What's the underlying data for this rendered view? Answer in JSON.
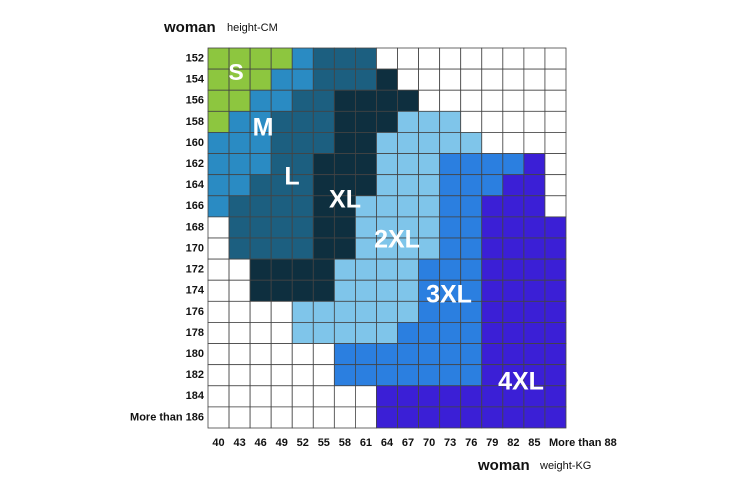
{
  "header": {
    "title": "woman",
    "unit": "height-CM"
  },
  "footer": {
    "title": "woman",
    "unit": "weight-KG"
  },
  "columns": [
    "40",
    "43",
    "46",
    "49",
    "52",
    "55",
    "58",
    "61",
    "64",
    "67",
    "70",
    "73",
    "76",
    "79",
    "82",
    "85",
    "More than 88"
  ],
  "sizes": [
    "S",
    "M",
    "L",
    "XL",
    "2XL",
    "3XL",
    "4XL"
  ],
  "rows": [
    {
      "label": "152",
      "cells": [
        "#8dc63f",
        "#8dc63f",
        "#8dc63f",
        "#8dc63f",
        "#2a8bc3",
        "#1c5f80",
        "#1c5f80",
        "#1c5f80",
        null,
        null,
        null,
        null,
        null,
        null,
        null,
        null,
        null
      ]
    },
    {
      "label": "154",
      "cells": [
        "#8dc63f",
        "#8dc63f",
        "#8dc63f",
        "#2a8bc3",
        "#2a8bc3",
        "#1c5f80",
        "#1c5f80",
        "#1c5f80",
        "#0e2f3f",
        null,
        null,
        null,
        null,
        null,
        null,
        null,
        null
      ]
    },
    {
      "label": "156",
      "cells": [
        "#8dc63f",
        "#8dc63f",
        "#2a8bc3",
        "#2a8bc3",
        "#1c5f80",
        "#1c5f80",
        "#0e2f3f",
        "#0e2f3f",
        "#0e2f3f",
        "#0e2f3f",
        null,
        null,
        null,
        null,
        null,
        null,
        null
      ]
    },
    {
      "label": "158",
      "cells": [
        "#8dc63f",
        "#2a8bc3",
        "#2a8bc3",
        "#1c5f80",
        "#1c5f80",
        "#1c5f80",
        "#0e2f3f",
        "#0e2f3f",
        "#0e2f3f",
        "#7fc5ea",
        "#7fc5ea",
        "#7fc5ea",
        null,
        null,
        null,
        null,
        null
      ]
    },
    {
      "label": "160",
      "cells": [
        "#2a8bc3",
        "#2a8bc3",
        "#2a8bc3",
        "#1c5f80",
        "#1c5f80",
        "#1c5f80",
        "#0e2f3f",
        "#0e2f3f",
        "#7fc5ea",
        "#7fc5ea",
        "#7fc5ea",
        "#7fc5ea",
        "#7fc5ea",
        null,
        null,
        null,
        null
      ]
    },
    {
      "label": "162",
      "cells": [
        "#2a8bc3",
        "#2a8bc3",
        "#2a8bc3",
        "#1c5f80",
        "#1c5f80",
        "#0e2f3f",
        "#0e2f3f",
        "#0e2f3f",
        "#7fc5ea",
        "#7fc5ea",
        "#7fc5ea",
        "#2b7fe0",
        "#2b7fe0",
        "#2b7fe0",
        "#2b7fe0",
        "#3b1fd6",
        null
      ]
    },
    {
      "label": "164",
      "cells": [
        "#2a8bc3",
        "#2a8bc3",
        "#1c5f80",
        "#1c5f80",
        "#1c5f80",
        "#0e2f3f",
        "#0e2f3f",
        "#0e2f3f",
        "#7fc5ea",
        "#7fc5ea",
        "#7fc5ea",
        "#2b7fe0",
        "#2b7fe0",
        "#2b7fe0",
        "#3b1fd6",
        "#3b1fd6",
        null
      ]
    },
    {
      "label": "166",
      "cells": [
        "#2a8bc3",
        "#1c5f80",
        "#1c5f80",
        "#1c5f80",
        "#1c5f80",
        "#0e2f3f",
        "#0e2f3f",
        "#7fc5ea",
        "#7fc5ea",
        "#7fc5ea",
        "#7fc5ea",
        "#2b7fe0",
        "#2b7fe0",
        "#3b1fd6",
        "#3b1fd6",
        "#3b1fd6",
        null
      ]
    },
    {
      "label": "168",
      "cells": [
        null,
        "#1c5f80",
        "#1c5f80",
        "#1c5f80",
        "#1c5f80",
        "#0e2f3f",
        "#0e2f3f",
        "#7fc5ea",
        "#7fc5ea",
        "#7fc5ea",
        "#7fc5ea",
        "#2b7fe0",
        "#2b7fe0",
        "#3b1fd6",
        "#3b1fd6",
        "#3b1fd6",
        "#3b1fd6"
      ]
    },
    {
      "label": "170",
      "cells": [
        null,
        "#1c5f80",
        "#1c5f80",
        "#1c5f80",
        "#1c5f80",
        "#0e2f3f",
        "#0e2f3f",
        "#7fc5ea",
        "#7fc5ea",
        "#7fc5ea",
        "#7fc5ea",
        "#2b7fe0",
        "#2b7fe0",
        "#3b1fd6",
        "#3b1fd6",
        "#3b1fd6",
        "#3b1fd6"
      ]
    },
    {
      "label": "172",
      "cells": [
        null,
        null,
        "#0e2f3f",
        "#0e2f3f",
        "#0e2f3f",
        "#0e2f3f",
        "#7fc5ea",
        "#7fc5ea",
        "#7fc5ea",
        "#7fc5ea",
        "#2b7fe0",
        "#2b7fe0",
        "#2b7fe0",
        "#3b1fd6",
        "#3b1fd6",
        "#3b1fd6",
        "#3b1fd6"
      ]
    },
    {
      "label": "174",
      "cells": [
        null,
        null,
        "#0e2f3f",
        "#0e2f3f",
        "#0e2f3f",
        "#0e2f3f",
        "#7fc5ea",
        "#7fc5ea",
        "#7fc5ea",
        "#7fc5ea",
        "#2b7fe0",
        "#2b7fe0",
        "#2b7fe0",
        "#3b1fd6",
        "#3b1fd6",
        "#3b1fd6",
        "#3b1fd6"
      ]
    },
    {
      "label": "176",
      "cells": [
        null,
        null,
        null,
        null,
        "#7fc5ea",
        "#7fc5ea",
        "#7fc5ea",
        "#7fc5ea",
        "#7fc5ea",
        "#7fc5ea",
        "#2b7fe0",
        "#2b7fe0",
        "#2b7fe0",
        "#3b1fd6",
        "#3b1fd6",
        "#3b1fd6",
        "#3b1fd6"
      ]
    },
    {
      "label": "178",
      "cells": [
        null,
        null,
        null,
        null,
        "#7fc5ea",
        "#7fc5ea",
        "#7fc5ea",
        "#7fc5ea",
        "#7fc5ea",
        "#2b7fe0",
        "#2b7fe0",
        "#2b7fe0",
        "#2b7fe0",
        "#3b1fd6",
        "#3b1fd6",
        "#3b1fd6",
        "#3b1fd6"
      ]
    },
    {
      "label": "180",
      "cells": [
        null,
        null,
        null,
        null,
        null,
        null,
        "#2b7fe0",
        "#2b7fe0",
        "#2b7fe0",
        "#2b7fe0",
        "#2b7fe0",
        "#2b7fe0",
        "#2b7fe0",
        "#3b1fd6",
        "#3b1fd6",
        "#3b1fd6",
        "#3b1fd6"
      ]
    },
    {
      "label": "182",
      "cells": [
        null,
        null,
        null,
        null,
        null,
        null,
        "#2b7fe0",
        "#2b7fe0",
        "#2b7fe0",
        "#2b7fe0",
        "#2b7fe0",
        "#2b7fe0",
        "#2b7fe0",
        "#3b1fd6",
        "#3b1fd6",
        "#3b1fd6",
        "#3b1fd6"
      ]
    },
    {
      "label": "184",
      "cells": [
        null,
        null,
        null,
        null,
        null,
        null,
        null,
        null,
        "#3b1fd6",
        "#3b1fd6",
        "#3b1fd6",
        "#3b1fd6",
        "#3b1fd6",
        "#3b1fd6",
        "#3b1fd6",
        "#3b1fd6",
        "#3b1fd6"
      ]
    },
    {
      "label": "More than 186",
      "cells": [
        null,
        null,
        null,
        null,
        null,
        null,
        null,
        null,
        "#3b1fd6",
        "#3b1fd6",
        "#3b1fd6",
        "#3b1fd6",
        "#3b1fd6",
        "#3b1fd6",
        "#3b1fd6",
        "#3b1fd6",
        "#3b1fd6"
      ]
    }
  ]
}
